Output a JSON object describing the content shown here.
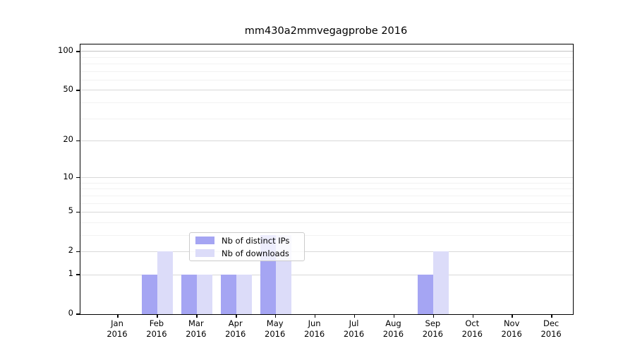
{
  "figure": {
    "title": "mm430a2mmvegagprobe 2016"
  },
  "chart_data": {
    "type": "bar",
    "title": "mm430a2mmvegagprobe 2016",
    "xlabel": "",
    "ylabel": "",
    "categories": [
      "Jan",
      "Feb",
      "Mar",
      "Apr",
      "May",
      "Jun",
      "Jul",
      "Aug",
      "Sep",
      "Oct",
      "Nov",
      "Dec"
    ],
    "category_year": "2016",
    "series": [
      {
        "name": "Nb of distinct IPs",
        "color": "#a5a5f3",
        "values": [
          0,
          1,
          1,
          1,
          3,
          0,
          0,
          0,
          1,
          0,
          0,
          0
        ]
      },
      {
        "name": "Nb of downloads",
        "color": "#dcdcf9",
        "values": [
          0,
          2,
          1,
          1,
          3,
          0,
          0,
          0,
          2,
          0,
          0,
          0
        ]
      }
    ],
    "yscale": "log1p",
    "yticks": [
      0,
      1,
      2,
      5,
      10,
      20,
      50,
      100
    ],
    "ylim": [
      0,
      113
    ],
    "minor_gridlines": [
      3,
      4,
      6,
      7,
      8,
      9,
      30,
      40,
      60,
      70,
      80,
      90
    ],
    "grid": "horizontal",
    "legend": {
      "position": "lower-center",
      "frame_alpha": 0.8,
      "entries": [
        "Nb of distinct IPs",
        "Nb of downloads"
      ]
    }
  },
  "colors": {
    "background": "#ffffff",
    "axis": "#000000",
    "major_grid": "#d8d8d8",
    "top_major_grid": "#c2c2c2",
    "minor_grid": "#f2f2f2",
    "bar_distinct_ips": "#a5a5f3",
    "bar_downloads": "#dcdcf9"
  }
}
